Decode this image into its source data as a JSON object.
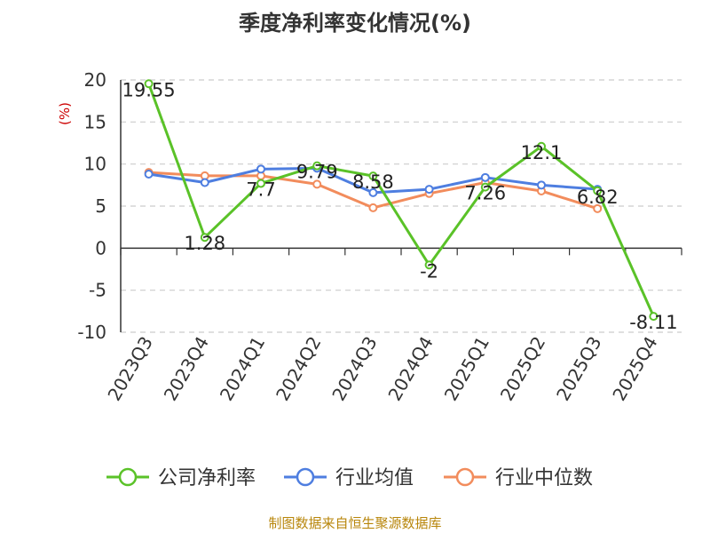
{
  "chart_data": {
    "type": "line",
    "title": "季度净利率变化情况(%)",
    "ylabel": "(%)",
    "xlabel": "",
    "ylim": [
      -10,
      20
    ],
    "yticks": [
      20,
      15,
      10,
      5,
      0,
      -5,
      -10
    ],
    "grid": true,
    "legend_position": "bottom",
    "categories": [
      "2023Q3",
      "2023Q4",
      "2024Q1",
      "2024Q2",
      "2024Q3",
      "2024Q4",
      "2025Q1",
      "2025Q2",
      "2025Q3",
      "2025Q4"
    ],
    "series": [
      {
        "name": "公司净利率",
        "color": "#5ac228",
        "values": [
          19.55,
          1.28,
          7.7,
          9.79,
          8.58,
          -2,
          7.26,
          12.1,
          6.82,
          -8.11
        ],
        "labels": [
          "19.55",
          "1.28",
          "7.7",
          "9.79",
          "8.58",
          "-2",
          "7.26",
          "12.1",
          "6.82",
          "-8.11"
        ]
      },
      {
        "name": "行业均值",
        "color": "#4e7ee0",
        "values": [
          8.8,
          7.8,
          9.4,
          9.5,
          6.6,
          7.0,
          8.4,
          7.5,
          7.0,
          null
        ]
      },
      {
        "name": "行业中位数",
        "color": "#f28c5c",
        "values": [
          9.0,
          8.6,
          8.6,
          7.6,
          4.8,
          6.5,
          7.8,
          6.8,
          4.7,
          null
        ]
      }
    ]
  },
  "footer": {
    "source": "制图数据来自恒生聚源数据库",
    "source_color": "#b8860b"
  }
}
